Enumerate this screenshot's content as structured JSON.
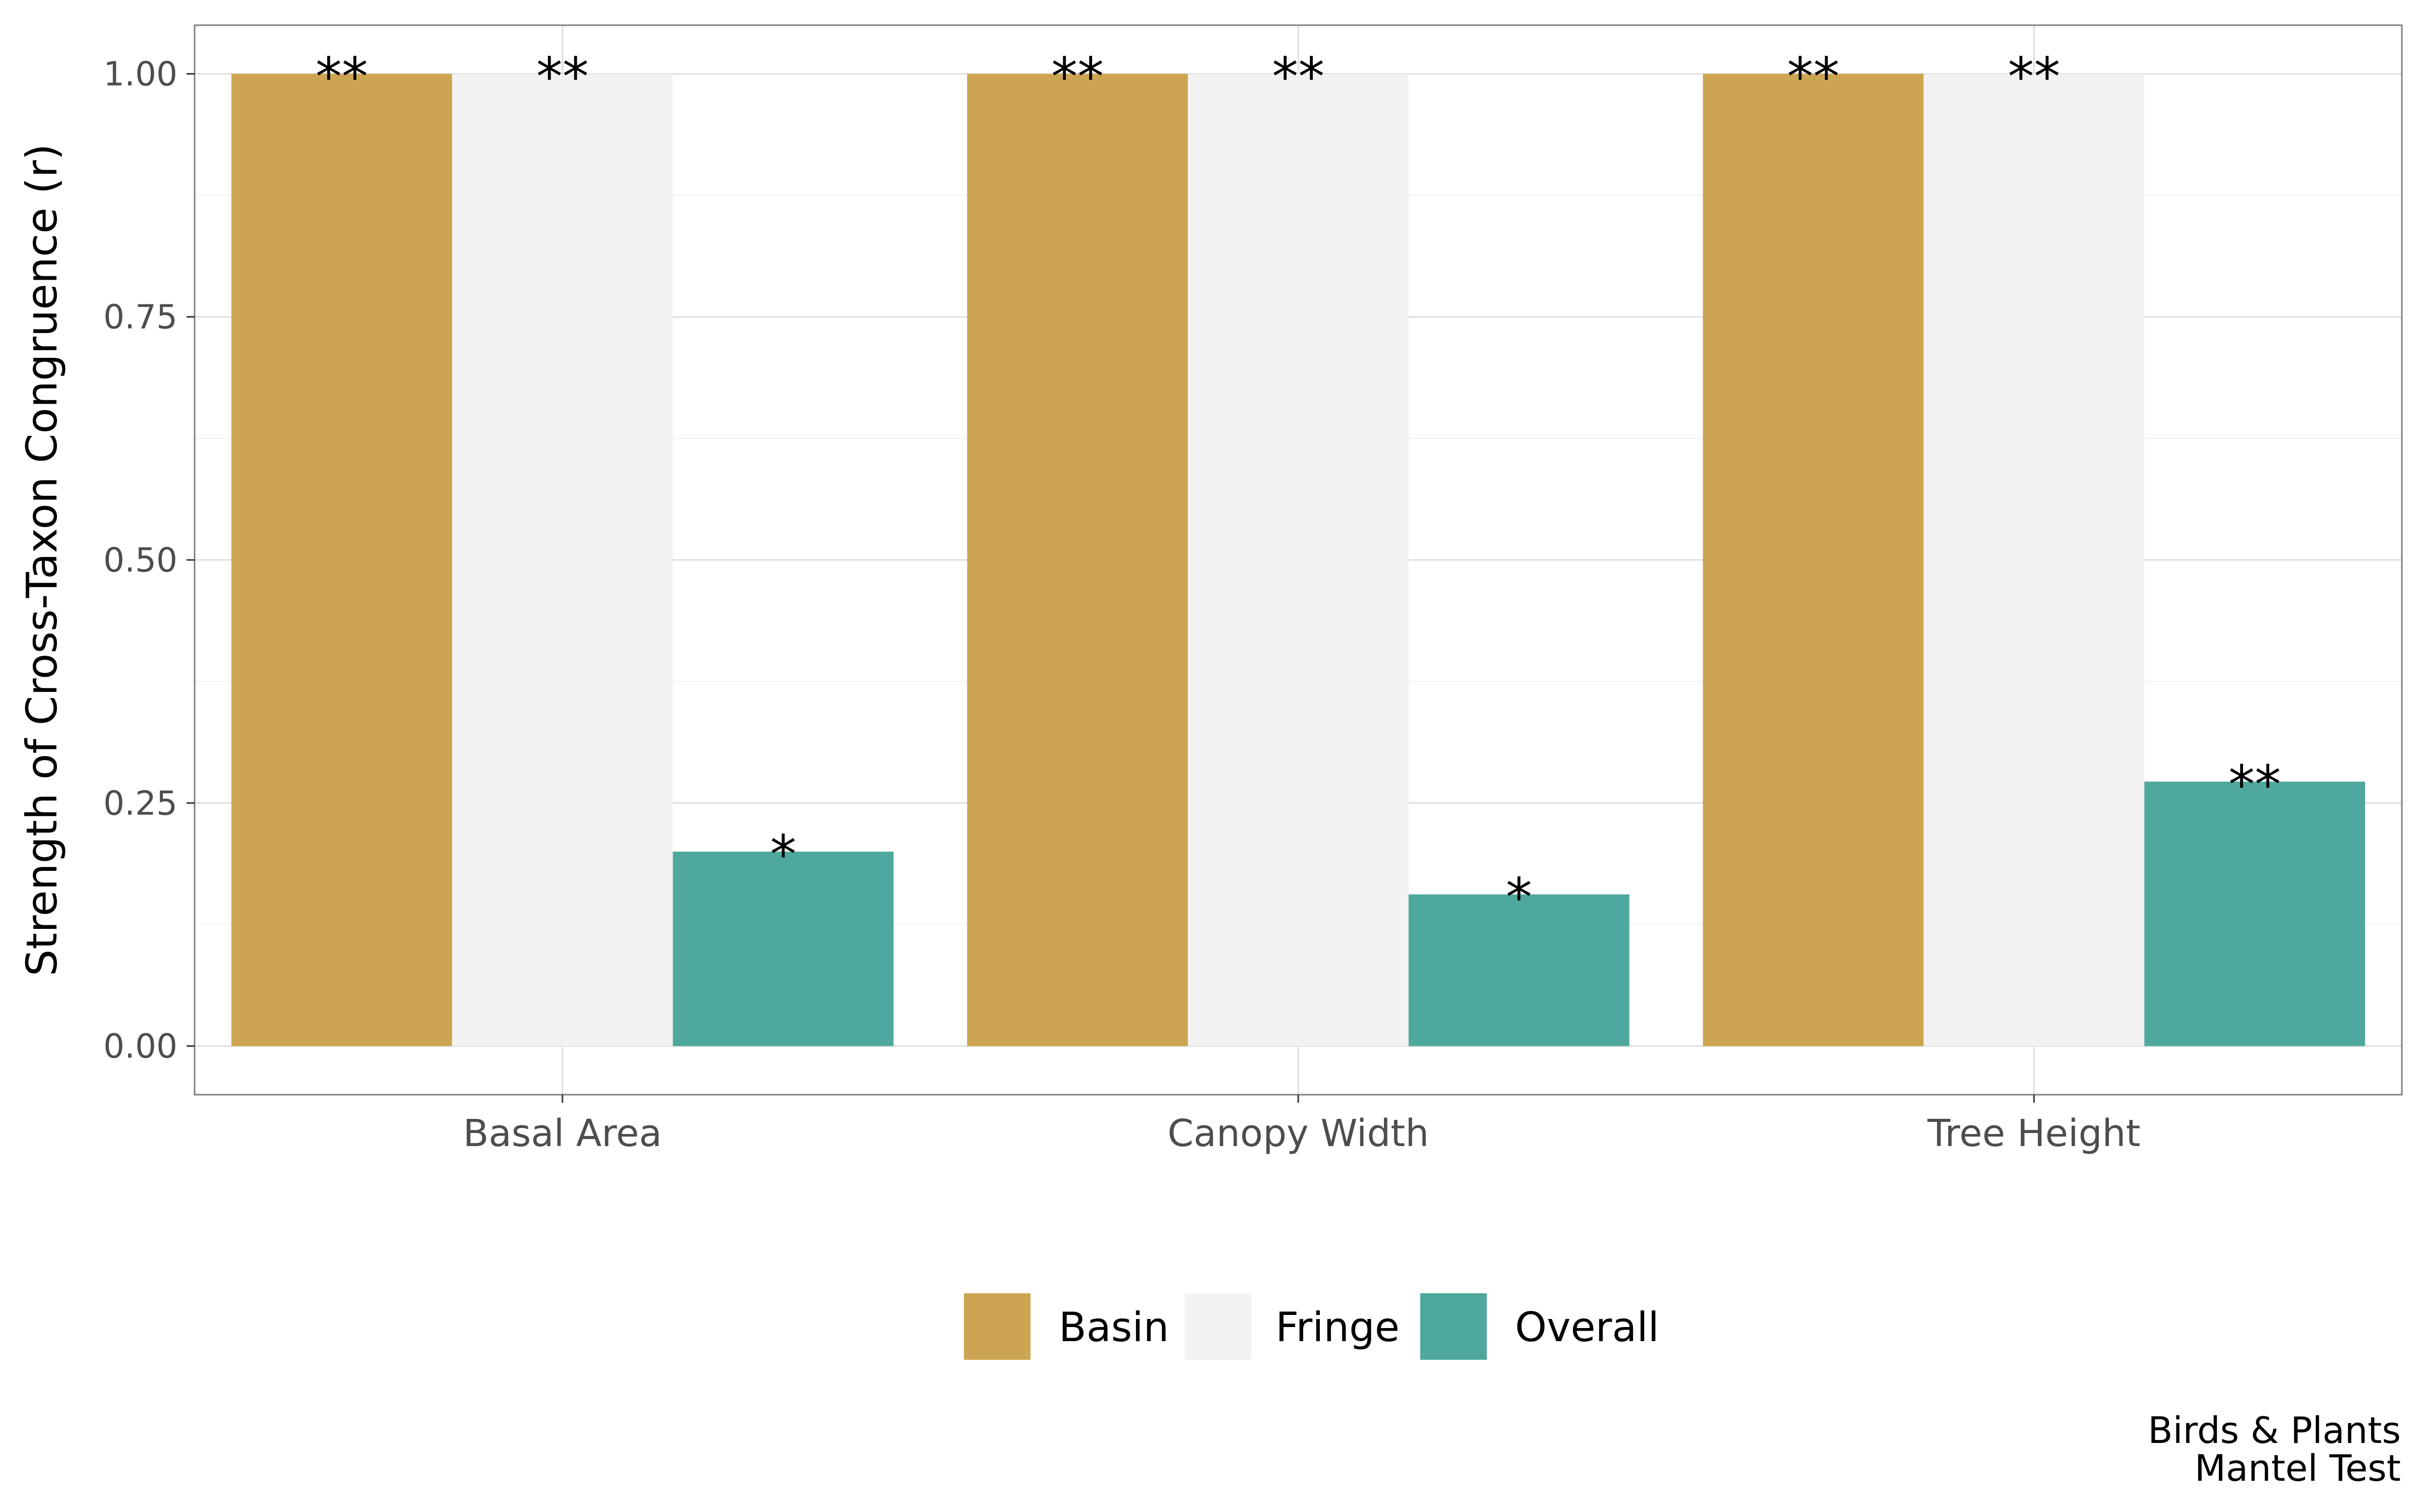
{
  "chart_data": {
    "type": "bar",
    "categories": [
      "Basal Area",
      "Canopy Width",
      "Tree Height"
    ],
    "series": [
      {
        "name": "Basin",
        "color": "#cda552",
        "values": [
          1.0,
          1.0,
          1.0
        ],
        "labels": [
          "**",
          "**",
          "**"
        ]
      },
      {
        "name": "Fringe",
        "color": "#f2f2f2",
        "values": [
          1.0,
          1.0,
          1.0
        ],
        "labels": [
          "**",
          "**",
          "**"
        ]
      },
      {
        "name": "Overall",
        "color": "#4ea89d",
        "values": [
          0.2,
          0.156,
          0.272
        ],
        "labels": [
          "*",
          "*",
          "**"
        ]
      }
    ],
    "ylabel": "Strength of Cross-Taxon Congruence (r)",
    "xlabel": "",
    "ylim": [
      -0.05,
      1.05
    ],
    "yticks": [
      "0.00",
      "0.25",
      "0.50",
      "0.75",
      "1.00"
    ],
    "ytick_values": [
      0,
      0.25,
      0.5,
      0.75,
      1.0
    ],
    "grid": true,
    "legend_position": "bottom",
    "caption": [
      "Birds & Plants",
      "Mantel Test"
    ]
  }
}
